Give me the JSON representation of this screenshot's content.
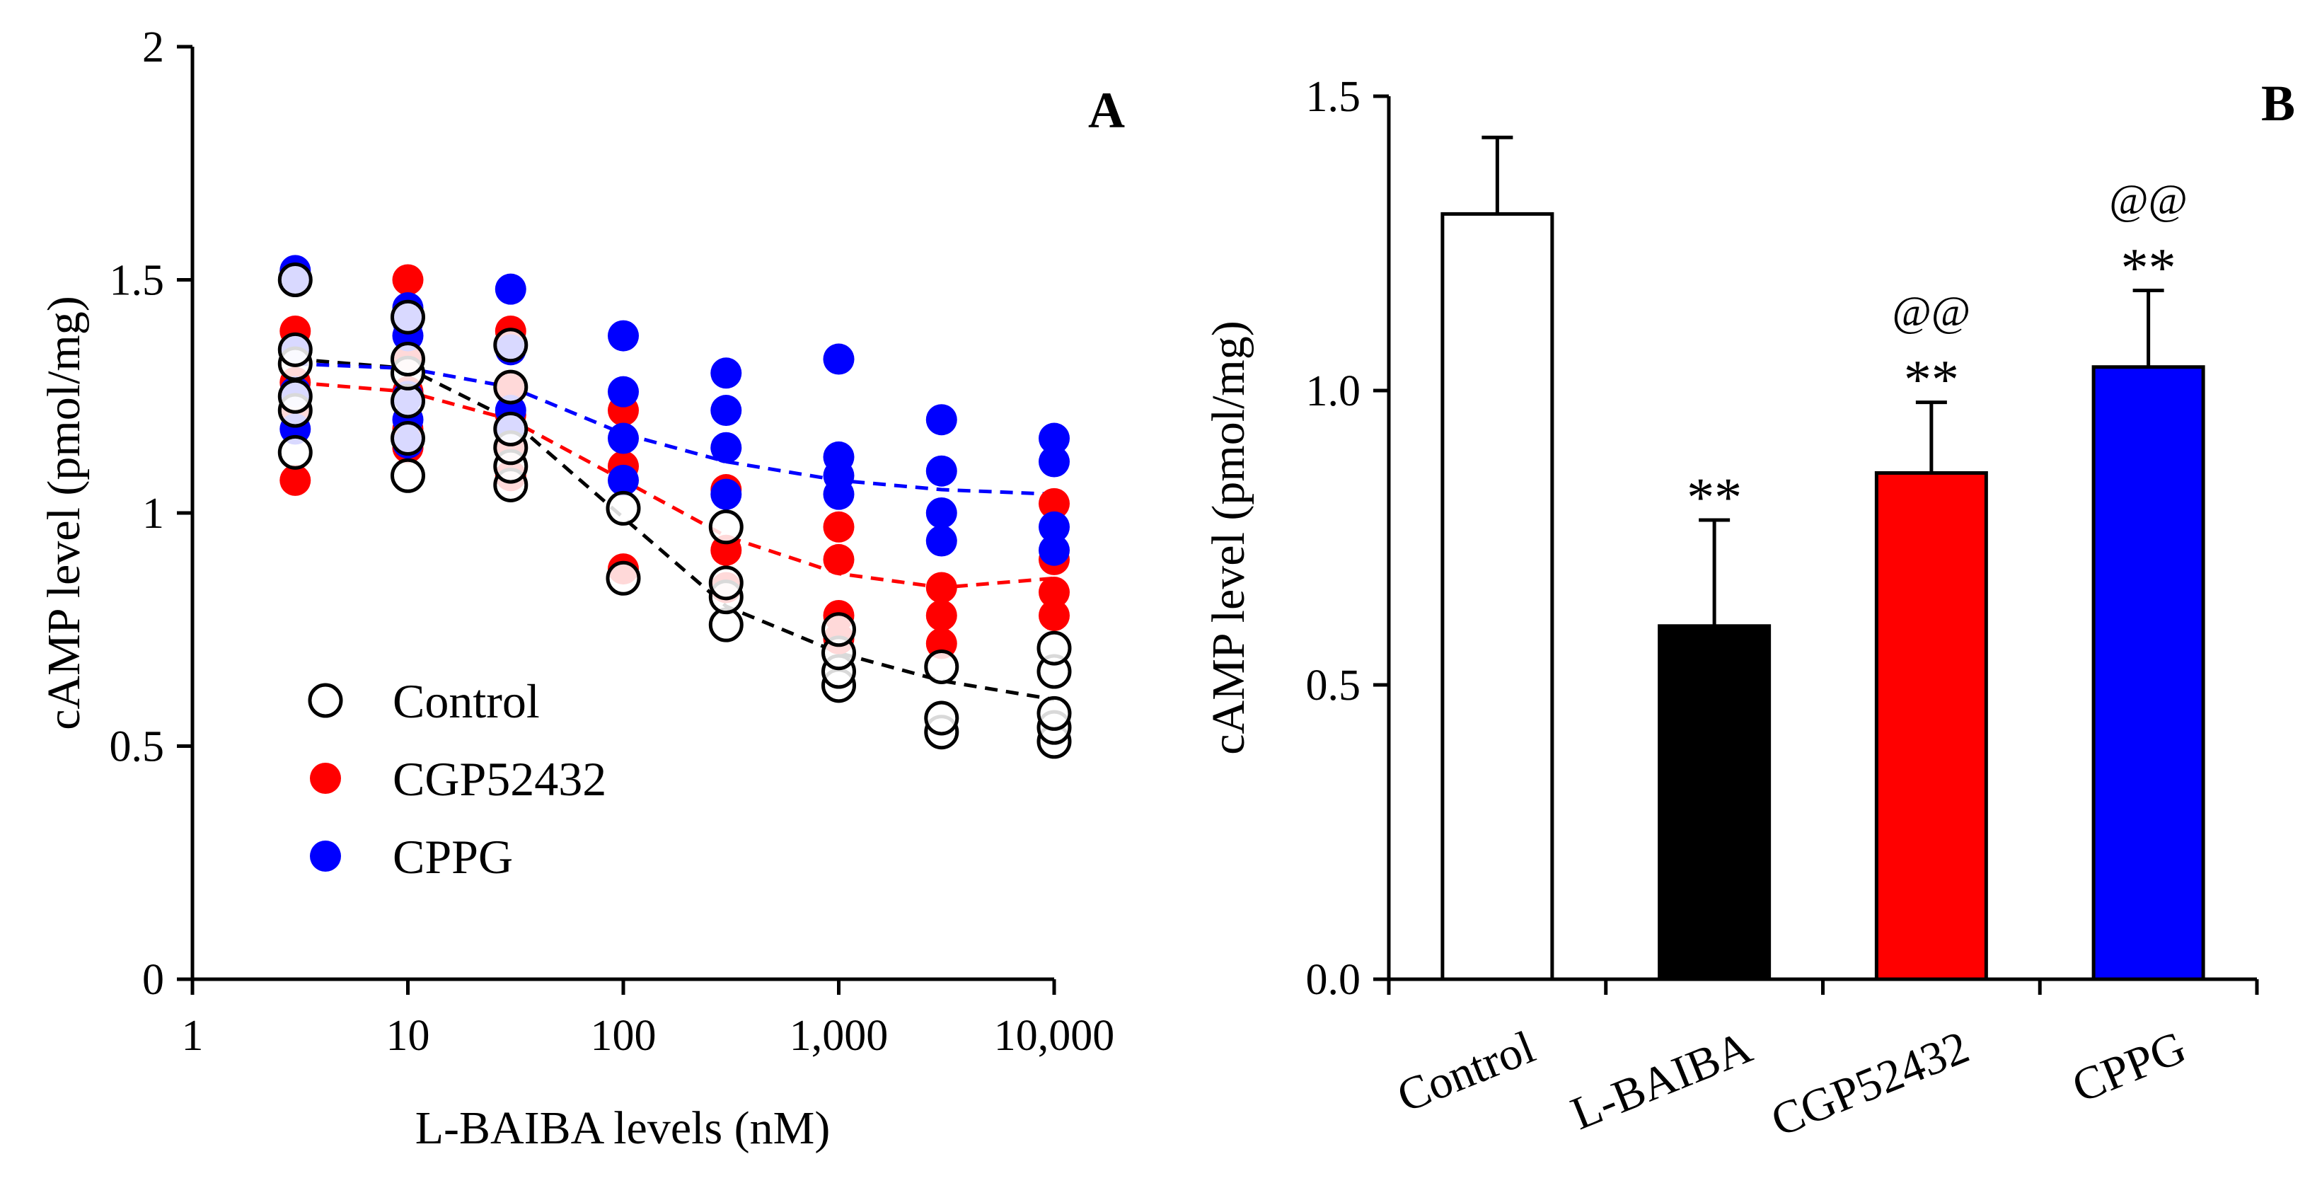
{
  "chart_data": [
    {
      "panel": "A",
      "type": "scatter",
      "xscale": "log",
      "xlabel": "L-BAIBA levels (nM)",
      "ylabel": "cAMP level (pmol/mg)",
      "ylim": [
        0,
        2
      ],
      "yticks": [
        "0",
        "0.5",
        "1",
        "1.5",
        "2"
      ],
      "xticks": [
        "1",
        "10",
        "100",
        "1,000",
        "10,000"
      ],
      "legend_position": "lower-left",
      "series": [
        {
          "name": "Control",
          "color": "#000000",
          "marker": "open-circle",
          "x": [
            3,
            3,
            3,
            3,
            3,
            3,
            10,
            10,
            10,
            10,
            10,
            10,
            30,
            30,
            30,
            30,
            30,
            30,
            100,
            100,
            300,
            300,
            300,
            300,
            1000,
            1000,
            1000,
            1000,
            3000,
            3000,
            3000,
            10000,
            10000,
            10000,
            10000,
            10000
          ],
          "y": [
            1.13,
            1.22,
            1.25,
            1.32,
            1.35,
            1.5,
            1.08,
            1.16,
            1.24,
            1.3,
            1.33,
            1.42,
            1.06,
            1.1,
            1.14,
            1.18,
            1.27,
            1.36,
            0.86,
            1.01,
            0.76,
            0.82,
            0.85,
            0.97,
            0.63,
            0.66,
            0.7,
            0.75,
            0.53,
            0.56,
            0.67,
            0.51,
            0.54,
            0.57,
            0.66,
            0.71
          ],
          "fit": {
            "x": [
              3,
              10,
              30,
              100,
              300,
              1000,
              3000,
              10000
            ],
            "y": [
              1.33,
              1.31,
              1.2,
              0.99,
              0.8,
              0.7,
              0.64,
              0.6
            ]
          }
        },
        {
          "name": "CGP52432",
          "color": "#ff0000",
          "marker": "filled-circle",
          "x": [
            3,
            3,
            3,
            3,
            3,
            10,
            10,
            10,
            10,
            10,
            10,
            30,
            30,
            30,
            30,
            30,
            100,
            100,
            100,
            300,
            300,
            300,
            1000,
            1000,
            1000,
            1000,
            3000,
            3000,
            3000,
            10000,
            10000,
            10000,
            10000
          ],
          "y": [
            1.07,
            1.22,
            1.28,
            1.35,
            1.39,
            1.14,
            1.18,
            1.26,
            1.33,
            1.42,
            1.5,
            1.08,
            1.14,
            1.21,
            1.27,
            1.39,
            0.88,
            1.1,
            1.22,
            0.84,
            0.92,
            1.05,
            0.73,
            0.78,
            0.9,
            0.97,
            0.72,
            0.78,
            0.84,
            0.78,
            0.83,
            0.9,
            1.02
          ],
          "fit": {
            "x": [
              3,
              10,
              30,
              100,
              300,
              1000,
              3000,
              10000
            ],
            "y": [
              1.28,
              1.26,
              1.2,
              1.07,
              0.95,
              0.87,
              0.84,
              0.86
            ]
          }
        },
        {
          "name": "CPPG",
          "color": "#0000ff",
          "marker": "filled-circle",
          "x": [
            3,
            3,
            3,
            3,
            3,
            10,
            10,
            10,
            10,
            10,
            10,
            30,
            30,
            30,
            30,
            100,
            100,
            100,
            100,
            300,
            300,
            300,
            300,
            1000,
            1000,
            1000,
            1000,
            3000,
            3000,
            3000,
            3000,
            10000,
            10000,
            10000,
            10000
          ],
          "y": [
            1.18,
            1.26,
            1.35,
            1.5,
            1.52,
            1.15,
            1.2,
            1.25,
            1.38,
            1.41,
            1.44,
            1.18,
            1.22,
            1.35,
            1.48,
            1.07,
            1.16,
            1.26,
            1.38,
            1.04,
            1.14,
            1.22,
            1.3,
            1.04,
            1.08,
            1.12,
            1.33,
            0.94,
            1.0,
            1.09,
            1.2,
            0.92,
            0.97,
            1.11,
            1.16
          ],
          "fit": {
            "x": [
              3,
              10,
              30,
              100,
              300,
              1000,
              3000,
              10000
            ],
            "y": [
              1.32,
              1.31,
              1.27,
              1.17,
              1.11,
              1.07,
              1.05,
              1.04
            ]
          }
        }
      ]
    },
    {
      "panel": "B",
      "type": "bar",
      "ylabel": "cAMP level (pmol/mg)",
      "ylim": [
        0,
        1.5
      ],
      "yticks": [
        "0.0",
        "0.5",
        "1.0",
        "1.5"
      ],
      "categories": [
        "Control",
        "L-BAIBA",
        "CGP52432",
        "CPPG"
      ],
      "values": [
        1.3,
        0.6,
        0.86,
        1.04
      ],
      "errors": [
        0.13,
        0.18,
        0.12,
        0.13
      ],
      "colors": [
        "#ffffff",
        "#000000",
        "#ff0000",
        "#0000ff"
      ],
      "significance_star": [
        "",
        "**",
        "**",
        "**"
      ],
      "significance_at": [
        "",
        "",
        "@@",
        "@@"
      ]
    }
  ]
}
